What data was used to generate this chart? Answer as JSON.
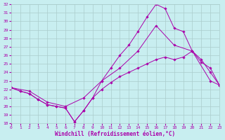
{
  "xlabel": "Windchill (Refroidissement éolien,°C)",
  "bg_color": "#c8eef0",
  "grid_color": "#aacccc",
  "line_color": "#aa00aa",
  "xlim": [
    0,
    23
  ],
  "ylim": [
    18,
    32
  ],
  "yticks": [
    18,
    19,
    20,
    21,
    22,
    23,
    24,
    25,
    26,
    27,
    28,
    29,
    30,
    31,
    32
  ],
  "xticks": [
    0,
    1,
    2,
    3,
    4,
    5,
    6,
    7,
    8,
    9,
    10,
    11,
    12,
    13,
    14,
    15,
    16,
    17,
    18,
    19,
    20,
    21,
    22,
    23
  ],
  "line1_x": [
    0,
    1,
    2,
    3,
    4,
    5,
    6,
    7,
    8,
    9,
    10,
    11,
    12,
    13,
    14,
    15,
    16,
    17,
    18,
    19,
    20,
    21,
    22,
    23
  ],
  "line1_y": [
    22.2,
    21.8,
    21.5,
    20.8,
    20.2,
    20.0,
    19.8,
    18.2,
    19.5,
    21.0,
    23.0,
    24.5,
    26.0,
    27.2,
    28.8,
    30.5,
    32.0,
    31.5,
    29.2,
    28.8,
    26.5,
    25.2,
    24.5,
    22.5
  ],
  "line2_x": [
    0,
    2,
    4,
    6,
    8,
    10,
    12,
    14,
    16,
    18,
    20,
    22,
    23
  ],
  "line2_y": [
    22.2,
    21.8,
    20.5,
    20.0,
    21.0,
    23.0,
    24.5,
    26.5,
    29.5,
    27.2,
    26.5,
    23.0,
    22.5
  ],
  "line3_x": [
    0,
    1,
    2,
    3,
    4,
    5,
    6,
    7,
    8,
    9,
    10,
    11,
    12,
    13,
    14,
    15,
    16,
    17,
    18,
    19,
    20,
    21,
    22,
    23
  ],
  "line3_y": [
    22.2,
    21.8,
    21.5,
    20.8,
    20.2,
    20.0,
    19.8,
    18.2,
    19.5,
    21.0,
    22.0,
    22.8,
    23.5,
    24.0,
    24.5,
    25.0,
    25.5,
    25.8,
    25.5,
    25.8,
    26.5,
    25.5,
    24.0,
    22.5
  ]
}
